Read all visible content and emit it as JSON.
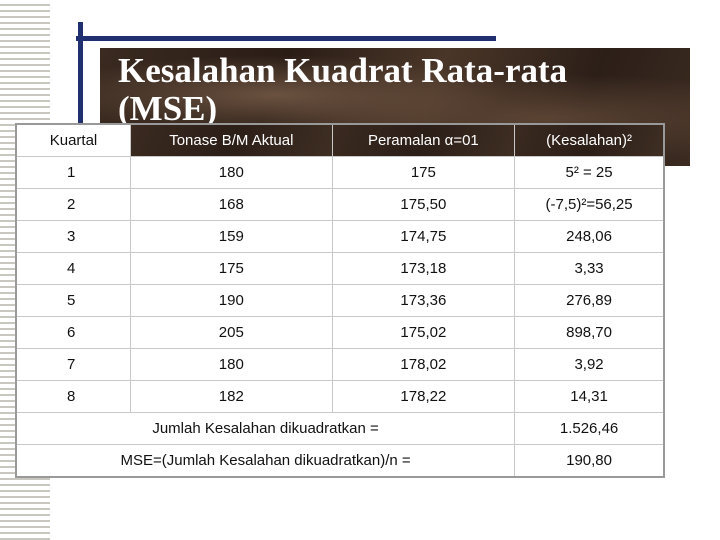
{
  "title": "Kesalahan Kuadrat Rata-rata (MSE)",
  "table": {
    "header": [
      "Kuartal",
      "Tonase B/M Aktual",
      "Peramalan α=01",
      "(Kesalahan)²"
    ],
    "rows": [
      [
        "1",
        "180",
        "175",
        "5² = 25"
      ],
      [
        "2",
        "168",
        "175,50",
        "(-7,5)²=56,25"
      ],
      [
        "3",
        "159",
        "174,75",
        "248,06"
      ],
      [
        "4",
        "175",
        "173,18",
        "3,33"
      ],
      [
        "5",
        "190",
        "173,36",
        "276,89"
      ],
      [
        "6",
        "205",
        "175,02",
        "898,70"
      ],
      [
        "7",
        "180",
        "178,02",
        "3,92"
      ],
      [
        "8",
        "182",
        "178,22",
        "14,31"
      ]
    ],
    "summary": [
      {
        "label": "Jumlah Kesalahan dikuadratkan =",
        "value": "1.526,46"
      },
      {
        "label": "MSE=(Jumlah Kesalahan dikuadratkan)/n =",
        "value": "190,80"
      }
    ]
  }
}
